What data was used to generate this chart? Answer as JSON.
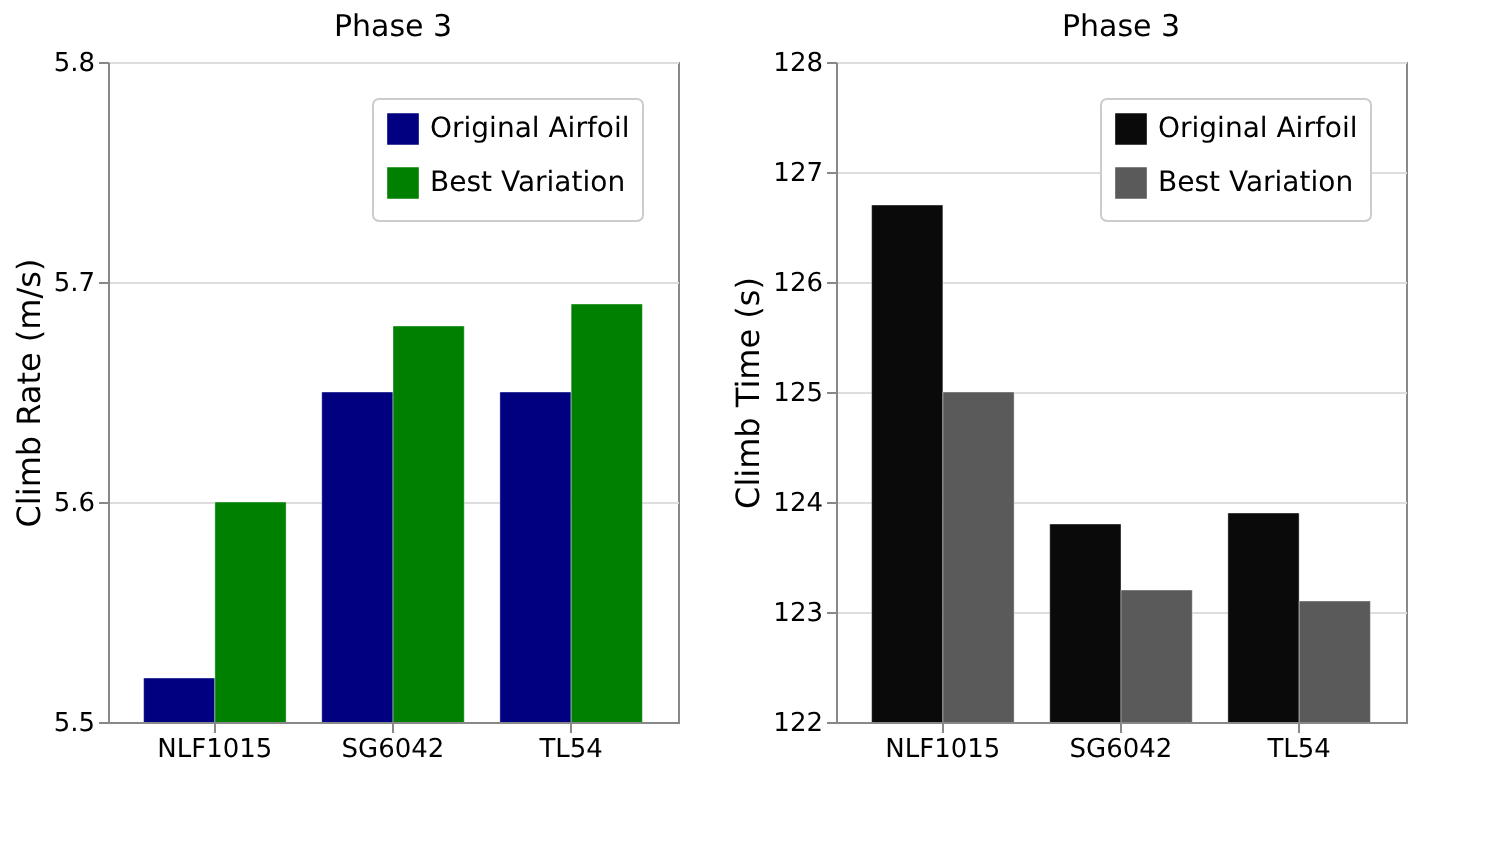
{
  "chart_data": [
    {
      "type": "bar",
      "title": "Phase 3",
      "ylabel": "Climb Rate (m/s)",
      "categories": [
        "NLF1015",
        "SG6042",
        "TL54"
      ],
      "series": [
        {
          "name": "Original Airfoil",
          "color": "#000080",
          "values": [
            5.52,
            5.65,
            5.65
          ]
        },
        {
          "name": "Best Variation",
          "color": "#008000",
          "values": [
            5.6,
            5.68,
            5.69
          ]
        }
      ],
      "ylim": [
        5.5,
        5.8
      ],
      "yticks": [
        5.5,
        5.6,
        5.7,
        5.8
      ],
      "grid": "y",
      "legend": "top right"
    },
    {
      "type": "bar",
      "title": "Phase 3",
      "ylabel": "Climb Time (s)",
      "categories": [
        "NLF1015",
        "SG6042",
        "TL54"
      ],
      "series": [
        {
          "name": "Original Airfoil",
          "color": "#0a0a0a",
          "values": [
            126.7,
            123.8,
            123.9
          ]
        },
        {
          "name": "Best Variation",
          "color": "#5a5a5a",
          "values": [
            125.0,
            123.2,
            123.1
          ]
        }
      ],
      "ylim": [
        122,
        128
      ],
      "yticks": [
        122,
        123,
        124,
        125,
        126,
        127,
        128
      ],
      "grid": "y",
      "legend": "top right"
    }
  ]
}
